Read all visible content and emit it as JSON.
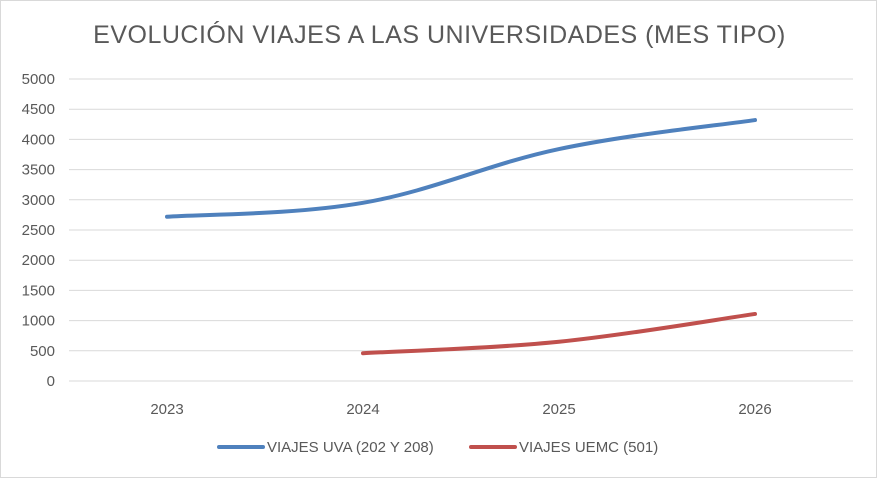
{
  "chart_data": {
    "type": "line",
    "title": "EVOLUCIÓN VIAJES A LAS UNIVERSIDADES (MES TIPO)",
    "categories": [
      "2023",
      "2024",
      "2025",
      "2026"
    ],
    "ylim": [
      0,
      5000
    ],
    "yticks": [
      "0",
      "500",
      "1000",
      "1500",
      "2000",
      "2500",
      "3000",
      "3500",
      "4000",
      "4500",
      "5000"
    ],
    "grid": true,
    "legend": "bottom",
    "series": [
      {
        "name": "VIAJES UVA (202 Y 208)",
        "color": "#4f81bd",
        "values": [
          2720,
          2950,
          3840,
          4320
        ]
      },
      {
        "name": "VIAJES UEMC (501)",
        "color": "#c0504d",
        "values": [
          null,
          460,
          650,
          1110
        ]
      }
    ]
  }
}
